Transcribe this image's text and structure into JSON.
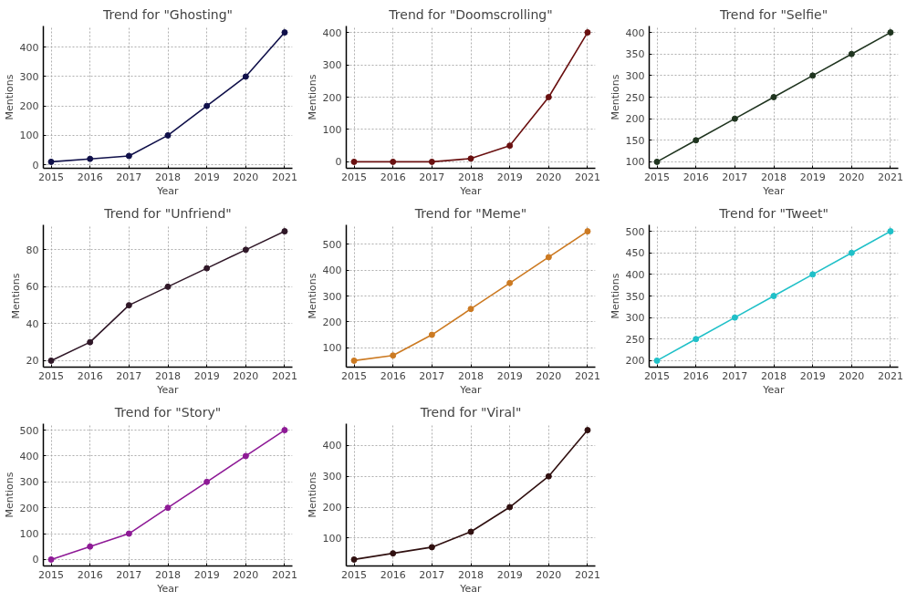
{
  "chart_data": [
    {
      "type": "line",
      "title": "Trend for \"Ghosting\"",
      "xlabel": "Year",
      "ylabel": "Mentions",
      "x": [
        2015,
        2016,
        2017,
        2018,
        2019,
        2020,
        2021
      ],
      "xlim": [
        2014.8,
        2021.2
      ],
      "xticks": [
        2015,
        2016,
        2017,
        2018,
        2019,
        2020,
        2021
      ],
      "ylim": [
        -12,
        472
      ],
      "yticks": [
        0,
        100,
        200,
        300,
        400
      ],
      "grid": true,
      "marker": "circle",
      "series": [
        {
          "color": "#10104a",
          "values": [
            10,
            20,
            30,
            100,
            200,
            300,
            450
          ]
        }
      ]
    },
    {
      "type": "line",
      "title": "Trend for \"Doomscrolling\"",
      "xlabel": "Year",
      "ylabel": "Mentions",
      "x": [
        2015,
        2016,
        2017,
        2018,
        2019,
        2020,
        2021
      ],
      "xlim": [
        2014.8,
        2021.2
      ],
      "xticks": [
        2015,
        2016,
        2017,
        2018,
        2019,
        2020,
        2021
      ],
      "ylim": [
        -20,
        420
      ],
      "yticks": [
        0,
        100,
        200,
        300,
        400
      ],
      "grid": true,
      "marker": "circle",
      "series": [
        {
          "color": "#6a1010",
          "values": [
            0,
            0,
            0,
            10,
            50,
            200,
            400
          ]
        }
      ]
    },
    {
      "type": "line",
      "title": "Trend for \"Selfie\"",
      "xlabel": "Year",
      "ylabel": "Mentions",
      "x": [
        2015,
        2016,
        2017,
        2018,
        2019,
        2020,
        2021
      ],
      "xlim": [
        2014.8,
        2021.2
      ],
      "xticks": [
        2015,
        2016,
        2017,
        2018,
        2019,
        2020,
        2021
      ],
      "ylim": [
        85,
        415
      ],
      "yticks": [
        100,
        150,
        200,
        250,
        300,
        350,
        400
      ],
      "grid": true,
      "marker": "circle",
      "series": [
        {
          "color": "#203520",
          "values": [
            100,
            150,
            200,
            250,
            300,
            350,
            400
          ]
        }
      ]
    },
    {
      "type": "line",
      "title": "Trend for \"Unfriend\"",
      "xlabel": "Year",
      "ylabel": "Mentions",
      "x": [
        2015,
        2016,
        2017,
        2018,
        2019,
        2020,
        2021
      ],
      "xlim": [
        2014.8,
        2021.2
      ],
      "xticks": [
        2015,
        2016,
        2017,
        2018,
        2019,
        2020,
        2021
      ],
      "ylim": [
        16.5,
        93.5
      ],
      "yticks": [
        20,
        40,
        60,
        80
      ],
      "grid": true,
      "marker": "circle",
      "series": [
        {
          "color": "#301828",
          "values": [
            20,
            30,
            50,
            60,
            70,
            80,
            90
          ]
        }
      ]
    },
    {
      "type": "line",
      "title": "Trend for \"Meme\"",
      "xlabel": "Year",
      "ylabel": "Mentions",
      "x": [
        2015,
        2016,
        2017,
        2018,
        2019,
        2020,
        2021
      ],
      "xlim": [
        2014.8,
        2021.2
      ],
      "xticks": [
        2015,
        2016,
        2017,
        2018,
        2019,
        2020,
        2021
      ],
      "ylim": [
        25,
        575
      ],
      "yticks": [
        100,
        200,
        300,
        400,
        500
      ],
      "grid": true,
      "marker": "circle",
      "series": [
        {
          "color": "#cc7a22",
          "values": [
            50,
            70,
            150,
            250,
            350,
            450,
            550
          ]
        }
      ]
    },
    {
      "type": "line",
      "title": "Trend for \"Tweet\"",
      "xlabel": "Year",
      "ylabel": "Mentions",
      "x": [
        2015,
        2016,
        2017,
        2018,
        2019,
        2020,
        2021
      ],
      "xlim": [
        2014.8,
        2021.2
      ],
      "xticks": [
        2015,
        2016,
        2017,
        2018,
        2019,
        2020,
        2021
      ],
      "ylim": [
        185,
        515
      ],
      "yticks": [
        200,
        250,
        300,
        350,
        400,
        450,
        500
      ],
      "grid": true,
      "marker": "circle",
      "series": [
        {
          "color": "#20c0c8",
          "values": [
            200,
            250,
            300,
            350,
            400,
            450,
            500
          ]
        }
      ]
    },
    {
      "type": "line",
      "title": "Trend for \"Story\"",
      "xlabel": "Year",
      "ylabel": "Mentions",
      "x": [
        2015,
        2016,
        2017,
        2018,
        2019,
        2020,
        2021
      ],
      "xlim": [
        2014.8,
        2021.2
      ],
      "xticks": [
        2015,
        2016,
        2017,
        2018,
        2019,
        2020,
        2021
      ],
      "ylim": [
        -25,
        525
      ],
      "yticks": [
        0,
        100,
        200,
        300,
        400,
        500
      ],
      "grid": true,
      "marker": "circle",
      "series": [
        {
          "color": "#8e1a96",
          "values": [
            0,
            50,
            100,
            200,
            300,
            400,
            500
          ]
        }
      ]
    },
    {
      "type": "line",
      "title": "Trend for \"Viral\"",
      "xlabel": "Year",
      "ylabel": "Mentions",
      "x": [
        2015,
        2016,
        2017,
        2018,
        2019,
        2020,
        2021
      ],
      "xlim": [
        2014.8,
        2021.2
      ],
      "xticks": [
        2015,
        2016,
        2017,
        2018,
        2019,
        2020,
        2021
      ],
      "ylim": [
        9,
        471
      ],
      "yticks": [
        100,
        200,
        300,
        400
      ],
      "grid": true,
      "marker": "circle",
      "series": [
        {
          "color": "#301010",
          "values": [
            30,
            50,
            70,
            120,
            200,
            300,
            450
          ]
        }
      ]
    }
  ]
}
